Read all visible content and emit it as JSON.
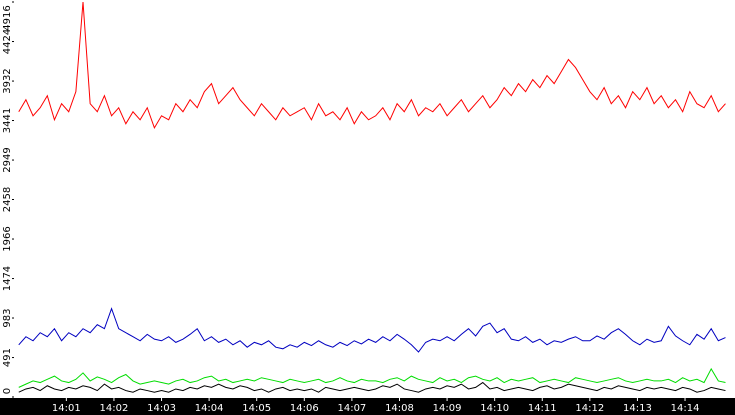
{
  "chart_data": {
    "type": "line",
    "x": [
      0,
      0.15,
      0.3,
      0.45,
      0.6,
      0.75,
      0.9,
      1.05,
      1.2,
      1.35,
      1.5,
      1.65,
      1.8,
      1.95,
      2.1,
      2.25,
      2.4,
      2.55,
      2.7,
      2.85,
      3,
      3.15,
      3.3,
      3.45,
      3.6,
      3.75,
      3.9,
      4.05,
      4.2,
      4.35,
      4.5,
      4.65,
      4.8,
      4.95,
      5.1,
      5.25,
      5.4,
      5.55,
      5.7,
      5.85,
      6,
      6.15,
      6.3,
      6.45,
      6.6,
      6.75,
      6.9,
      7.05,
      7.2,
      7.35,
      7.5,
      7.65,
      7.8,
      7.95,
      8.1,
      8.25,
      8.4,
      8.55,
      8.7,
      8.85,
      9,
      9.15,
      9.3,
      9.45,
      9.6,
      9.75,
      9.9,
      10.05,
      10.2,
      10.35,
      10.5,
      10.65,
      10.8,
      10.95,
      11.1,
      11.25,
      11.4,
      11.55,
      11.7,
      11.85,
      12,
      12.15,
      12.3,
      12.45,
      12.6,
      12.75,
      12.9,
      13.05,
      13.2,
      13.35,
      13.5,
      13.65,
      13.8,
      13.95,
      14.1,
      14.25,
      14.4,
      14.55,
      14.7,
      14.85
    ],
    "series": [
      {
        "color": "#ff0000",
        "values": [
          3550,
          3700,
          3500,
          3600,
          3750,
          3450,
          3650,
          3550,
          3800,
          4916,
          3650,
          3550,
          3750,
          3500,
          3600,
          3400,
          3550,
          3450,
          3600,
          3350,
          3500,
          3450,
          3650,
          3550,
          3700,
          3600,
          3800,
          3900,
          3650,
          3750,
          3850,
          3700,
          3600,
          3500,
          3650,
          3550,
          3450,
          3600,
          3500,
          3550,
          3600,
          3450,
          3650,
          3500,
          3550,
          3450,
          3600,
          3400,
          3550,
          3450,
          3500,
          3600,
          3450,
          3650,
          3550,
          3700,
          3500,
          3600,
          3550,
          3650,
          3500,
          3600,
          3700,
          3550,
          3650,
          3750,
          3600,
          3700,
          3850,
          3750,
          3900,
          3800,
          3950,
          3850,
          4000,
          3900,
          4050,
          4200,
          4100,
          3950,
          3800,
          3700,
          3850,
          3650,
          3750,
          3600,
          3800,
          3700,
          3850,
          3650,
          3750,
          3600,
          3700,
          3550,
          3800,
          3650,
          3600,
          3750,
          3550,
          3650
        ]
      },
      {
        "color": "#0000c0",
        "values": [
          650,
          750,
          700,
          800,
          750,
          850,
          700,
          800,
          750,
          850,
          800,
          900,
          850,
          1100,
          850,
          800,
          750,
          700,
          780,
          720,
          700,
          750,
          680,
          720,
          780,
          850,
          700,
          750,
          680,
          720,
          650,
          700,
          620,
          680,
          650,
          700,
          620,
          600,
          650,
          620,
          680,
          640,
          700,
          650,
          620,
          680,
          640,
          700,
          660,
          720,
          680,
          750,
          700,
          780,
          720,
          650,
          560,
          680,
          720,
          700,
          750,
          700,
          780,
          850,
          760,
          880,
          920,
          800,
          850,
          720,
          700,
          750,
          680,
          720,
          650,
          700,
          680,
          720,
          750,
          700,
          700,
          760,
          720,
          800,
          850,
          780,
          700,
          650,
          720,
          680,
          700,
          880,
          760,
          700,
          650,
          780,
          720,
          850,
          700,
          740
        ]
      },
      {
        "color": "#00dd00",
        "values": [
          120,
          160,
          200,
          180,
          220,
          260,
          200,
          180,
          220,
          300,
          200,
          250,
          220,
          180,
          240,
          280,
          200,
          160,
          180,
          200,
          180,
          160,
          200,
          220,
          180,
          200,
          240,
          260,
          200,
          220,
          180,
          200,
          220,
          200,
          240,
          220,
          200,
          180,
          220,
          200,
          180,
          200,
          220,
          180,
          200,
          240,
          200,
          180,
          220,
          200,
          200,
          180,
          220,
          240,
          200,
          260,
          220,
          200,
          180,
          240,
          200,
          220,
          180,
          240,
          260,
          220,
          200,
          240,
          180,
          220,
          200,
          220,
          240,
          180,
          200,
          220,
          200,
          180,
          240,
          220,
          200,
          180,
          200,
          220,
          240,
          200,
          180,
          200,
          220,
          200,
          200,
          220,
          180,
          240,
          200,
          220,
          180,
          350,
          200,
          180
        ]
      },
      {
        "color": "#000000",
        "values": [
          60,
          100,
          120,
          80,
          140,
          100,
          80,
          120,
          100,
          140,
          120,
          80,
          160,
          100,
          120,
          80,
          60,
          100,
          80,
          60,
          80,
          60,
          100,
          80,
          120,
          100,
          140,
          120,
          160,
          120,
          100,
          140,
          120,
          80,
          100,
          60,
          100,
          120,
          80,
          100,
          80,
          100,
          60,
          120,
          100,
          80,
          100,
          120,
          100,
          80,
          100,
          140,
          120,
          160,
          100,
          80,
          60,
          100,
          120,
          100,
          140,
          120,
          160,
          100,
          120,
          180,
          100,
          120,
          80,
          100,
          120,
          100,
          80,
          120,
          140,
          100,
          120,
          160,
          140,
          120,
          100,
          80,
          120,
          100,
          140,
          120,
          100,
          80,
          120,
          100,
          120,
          100,
          80,
          120,
          100,
          60,
          80,
          120,
          100,
          80
        ]
      }
    ],
    "xlim": [
      -0.1,
      15.05
    ],
    "xticks": [
      {
        "value": 1,
        "label": "14:01"
      },
      {
        "value": 2,
        "label": "14:02"
      },
      {
        "value": 3,
        "label": "14:03"
      },
      {
        "value": 4,
        "label": "14:04"
      },
      {
        "value": 5,
        "label": "14:05"
      },
      {
        "value": 6,
        "label": "14:06"
      },
      {
        "value": 7,
        "label": "14:07"
      },
      {
        "value": 8,
        "label": "14:08"
      },
      {
        "value": 9,
        "label": "14:09"
      },
      {
        "value": 10,
        "label": "14:10"
      },
      {
        "value": 11,
        "label": "14:11"
      },
      {
        "value": 12,
        "label": "14:12"
      },
      {
        "value": 13,
        "label": "14:13"
      },
      {
        "value": 14,
        "label": "14:14"
      }
    ],
    "ylim": [
      0,
      4916
    ],
    "yticks": [
      0,
      491,
      983,
      1474,
      1966,
      2458,
      2949,
      3441,
      3932,
      4424,
      4916
    ]
  }
}
